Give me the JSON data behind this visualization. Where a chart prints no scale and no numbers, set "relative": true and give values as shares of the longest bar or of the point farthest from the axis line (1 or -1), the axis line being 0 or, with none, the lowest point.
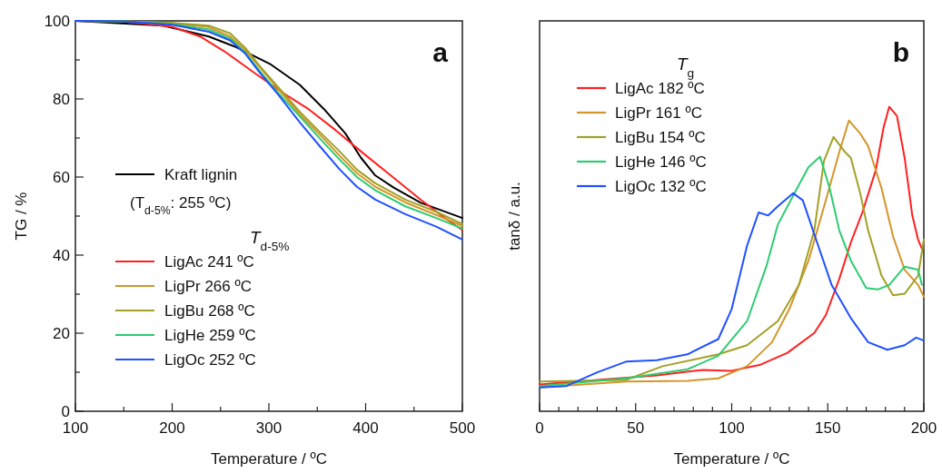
{
  "chart_data": [
    {
      "type": "line",
      "title": "a",
      "xlabel": "Temperature / ºC",
      "ylabel": "TG / %",
      "xlim": [
        100,
        500
      ],
      "ylim": [
        0,
        100
      ],
      "xticks": [
        100,
        {
          "value": 150,
          "label": null
        },
        200,
        {
          "value": 250,
          "label": null
        },
        300,
        {
          "value": 350,
          "label": null
        },
        400,
        {
          "value": 450,
          "label": null
        },
        500
      ],
      "yticks": [
        0,
        {
          "value": 10,
          "label": null
        },
        20,
        {
          "value": 30,
          "label": null
        },
        40,
        {
          "value": 50,
          "label": null
        },
        60,
        {
          "value": 70,
          "label": null
        },
        80,
        {
          "value": 90,
          "label": null
        },
        100
      ],
      "legend": "bottom left",
      "legend_title": "T$_{d-5%}$",
      "annotations": [
        "(T$_{d-5%}$: 255 ºC)"
      ],
      "grid": false,
      "series": [
        {
          "name": "Kraft lignin",
          "color": "#000000",
          "x": [
            100,
            191,
            238,
            266,
            301,
            332,
            357,
            379,
            395,
            410,
            429,
            457,
            500
          ],
          "values": [
            100,
            98.8,
            96,
            93.3,
            89,
            83.6,
            77.4,
            71.2,
            65,
            60.4,
            57.3,
            53.4,
            49.5
          ]
        },
        {
          "name": "LigAc 241 ºC",
          "color": "#ff2020",
          "x": [
            100,
            150,
            200,
            229,
            254,
            285,
            316,
            341,
            369,
            395,
            426,
            457,
            482,
            500
          ],
          "values": [
            100,
            99.8,
            98.5,
            96,
            92.2,
            86.7,
            81.3,
            77.4,
            72,
            66.6,
            60.4,
            54.2,
            49.5,
            46.4
          ]
        },
        {
          "name": "LigPr 266 ºC",
          "color": "#d4952a",
          "x": [
            100,
            150,
            200,
            238,
            260,
            276,
            291,
            310,
            332,
            354,
            373,
            391,
            410,
            441,
            473,
            500
          ],
          "values": [
            100,
            99.9,
            99.4,
            98.4,
            96,
            92.5,
            88,
            82.5,
            76,
            70.5,
            65.5,
            61,
            57.5,
            53.5,
            50.3,
            47.5
          ]
        },
        {
          "name": "LigBu 268 ºC",
          "color": "#a3a025",
          "x": [
            100,
            150,
            200,
            238,
            260,
            276,
            291,
            310,
            332,
            354,
            373,
            391,
            410,
            441,
            473,
            500
          ],
          "values": [
            100,
            99.9,
            99.5,
            98.8,
            96.8,
            93,
            88.3,
            82.9,
            76.7,
            71.2,
            66.6,
            61.9,
            58.4,
            54.2,
            51.1,
            48
          ]
        },
        {
          "name": "LigHe 259 ºC",
          "color": "#2ecc71",
          "x": [
            100,
            150,
            200,
            238,
            260,
            276,
            291,
            310,
            332,
            354,
            373,
            391,
            410,
            441,
            473,
            500
          ],
          "values": [
            100,
            99.9,
            99.2,
            97.8,
            95.5,
            91.8,
            87,
            81.5,
            75.5,
            69.5,
            64.5,
            60,
            56.6,
            52.5,
            49.5,
            46.8
          ]
        },
        {
          "name": "LigOc 252 ºC",
          "color": "#2050ff",
          "x": [
            100,
            150,
            200,
            238,
            260,
            276,
            291,
            310,
            332,
            354,
            373,
            391,
            410,
            441,
            473,
            500
          ],
          "values": [
            100,
            99.9,
            99,
            97.2,
            95,
            91.5,
            86.6,
            81,
            74,
            67.5,
            62,
            57.5,
            54.2,
            50.5,
            47.3,
            44
          ]
        }
      ]
    },
    {
      "type": "line",
      "title": "b",
      "xlabel": "Temperature / ºC",
      "ylabel": "tanδ / a.u.",
      "relative": true,
      "xlim": [
        0,
        200
      ],
      "xticks": [
        0,
        {
          "value": 10,
          "label": null
        },
        {
          "value": 20,
          "label": null
        },
        {
          "value": 30,
          "label": null
        },
        {
          "value": 40,
          "label": null
        },
        50,
        {
          "value": 60,
          "label": null
        },
        {
          "value": 70,
          "label": null
        },
        {
          "value": 80,
          "label": null
        },
        {
          "value": 90,
          "label": null
        },
        100,
        {
          "value": 110,
          "label": null
        },
        {
          "value": 120,
          "label": null
        },
        {
          "value": 130,
          "label": null
        },
        {
          "value": 140,
          "label": null
        },
        150,
        {
          "value": 160,
          "label": null
        },
        {
          "value": 170,
          "label": null
        },
        {
          "value": 180,
          "label": null
        },
        {
          "value": 190,
          "label": null
        },
        200
      ],
      "legend": "top left",
      "legend_title": "T$_{g}$",
      "grid": false,
      "tick_labels": "x",
      "series": [
        {
          "name": "LigAc 182 ºC",
          "color": "#ff2020",
          "x": [
            0,
            30,
            61,
            85,
            100,
            115,
            129,
            143,
            149,
            156,
            162,
            168,
            175,
            179,
            182,
            186,
            190,
            194,
            197,
            199
          ],
          "values": [
            0.088,
            0.103,
            0.118,
            0.136,
            0.133,
            0.153,
            0.192,
            0.257,
            0.316,
            0.435,
            0.554,
            0.653,
            0.792,
            0.931,
            1,
            0.97,
            0.832,
            0.643,
            0.564,
            0.534
          ]
        },
        {
          "name": "LigPr 161 ºC",
          "color": "#d4952a",
          "x": [
            0,
            45,
            77,
            93,
            108,
            121,
            130,
            140,
            149,
            156,
            161,
            167,
            171,
            178,
            184,
            190,
            197,
            200
          ],
          "values": [
            0.078,
            0.098,
            0.1,
            0.108,
            0.148,
            0.227,
            0.336,
            0.495,
            0.693,
            0.851,
            0.955,
            0.911,
            0.871,
            0.732,
            0.574,
            0.465,
            0.415,
            0.376
          ]
        },
        {
          "name": "LigBu 154 ºC",
          "color": "#a3a025",
          "x": [
            0,
            45,
            64,
            93,
            108,
            124,
            135,
            143,
            148,
            153,
            159,
            162,
            167,
            171,
            178,
            184,
            190,
            197,
            200
          ],
          "values": [
            0.098,
            0.103,
            0.148,
            0.187,
            0.217,
            0.296,
            0.415,
            0.594,
            0.822,
            0.901,
            0.851,
            0.832,
            0.713,
            0.594,
            0.445,
            0.381,
            0.386,
            0.445,
            0.564
          ]
        },
        {
          "name": "LigHe 146 ºC",
          "color": "#2ecc71",
          "x": [
            0,
            45,
            77,
            93,
            108,
            118,
            124,
            134,
            140,
            146,
            151,
            156,
            162,
            170,
            176,
            182,
            190,
            197,
            199
          ],
          "values": [
            0.083,
            0.108,
            0.138,
            0.182,
            0.296,
            0.475,
            0.613,
            0.732,
            0.802,
            0.836,
            0.732,
            0.594,
            0.495,
            0.405,
            0.4,
            0.415,
            0.475,
            0.465,
            0.415
          ]
        },
        {
          "name": "LigOc 132 ºC",
          "color": "#2050ff",
          "x": [
            0,
            14,
            30,
            45,
            61,
            77,
            93,
            100,
            108,
            114,
            119,
            124,
            132,
            137,
            145,
            152,
            162,
            171,
            181,
            190,
            196,
            200
          ],
          "values": [
            0.078,
            0.083,
            0.128,
            0.163,
            0.168,
            0.187,
            0.237,
            0.336,
            0.544,
            0.653,
            0.643,
            0.673,
            0.716,
            0.693,
            0.544,
            0.415,
            0.306,
            0.227,
            0.202,
            0.217,
            0.242,
            0.232
          ]
        }
      ]
    }
  ]
}
